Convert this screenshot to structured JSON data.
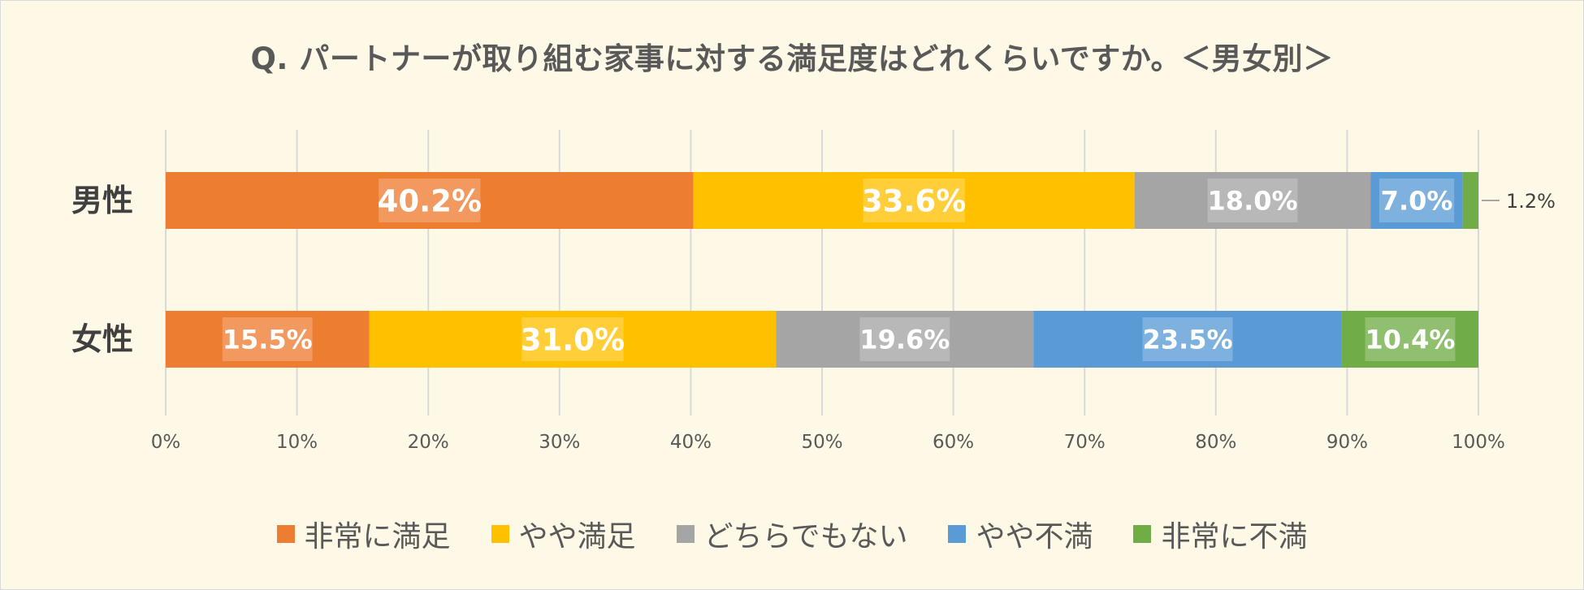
{
  "chart_data": {
    "type": "bar",
    "orientation": "horizontal",
    "stacked": true,
    "title": "Q. パートナーが取り組む家事に対する満足度はどれくらいですか。＜男女別＞",
    "categories": [
      "男性",
      "女性"
    ],
    "series": [
      {
        "name": "非常に満足",
        "color": "#ed7d31",
        "values": [
          40.2,
          15.5
        ],
        "labels": [
          "40.2%",
          "15.5%"
        ]
      },
      {
        "name": "やや満足",
        "color": "#ffc000",
        "values": [
          33.6,
          31.0
        ],
        "labels": [
          "33.6%",
          "31.0%"
        ]
      },
      {
        "name": "どちらでもない",
        "color": "#a5a5a5",
        "values": [
          18.0,
          19.6
        ],
        "labels": [
          "18.0%",
          "19.6%"
        ]
      },
      {
        "name": "やや不満",
        "color": "#5b9bd5",
        "values": [
          7.0,
          23.5
        ],
        "labels": [
          "7.0%",
          "23.5%"
        ]
      },
      {
        "name": "非常に不満",
        "color": "#70ad47",
        "values": [
          1.2,
          10.4
        ],
        "labels": [
          "1.2%",
          "10.4%"
        ]
      }
    ],
    "xlim": [
      0,
      100
    ],
    "xticks": [
      "0%",
      "10%",
      "20%",
      "30%",
      "40%",
      "50%",
      "60%",
      "70%",
      "80%",
      "90%",
      "100%"
    ],
    "grid": true,
    "legend_position": "bottom"
  },
  "colors": {
    "background": "#fef9e6",
    "gridline": "#d9d9d9",
    "title": "#595959"
  }
}
